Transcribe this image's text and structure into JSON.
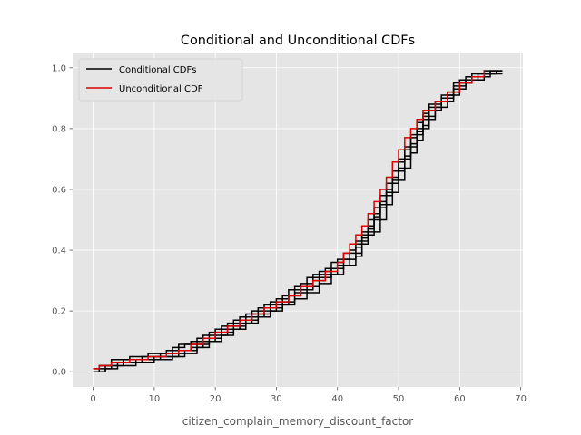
{
  "chart_data": {
    "type": "line",
    "title": "Conditional and Unconditional CDFs",
    "xlabel": "citizen_complain_memory_discount_factor",
    "ylabel": "",
    "xlim": [
      -3.35,
      70.35
    ],
    "ylim": [
      -0.05,
      1.05
    ],
    "xticks": [
      0,
      10,
      20,
      30,
      40,
      50,
      60,
      70
    ],
    "yticks": [
      0.0,
      0.2,
      0.4,
      0.6,
      0.8,
      1.0
    ],
    "xtick_labels": [
      "0",
      "10",
      "20",
      "30",
      "40",
      "50",
      "60",
      "70"
    ],
    "ytick_labels": [
      "0.0",
      "0.2",
      "0.4",
      "0.6",
      "0.8",
      "1.0"
    ],
    "grid": true,
    "legend_position": "top-left",
    "step": true,
    "series": [
      {
        "name": "Conditional CDFs",
        "color": "#000000",
        "lines": [
          [
            [
              0,
              0.0
            ],
            [
              1,
              0.01
            ],
            [
              3,
              0.02
            ],
            [
              5,
              0.03
            ],
            [
              8,
              0.04
            ],
            [
              11,
              0.05
            ],
            [
              14,
              0.07
            ],
            [
              16,
              0.08
            ],
            [
              18,
              0.1
            ],
            [
              20,
              0.12
            ],
            [
              22,
              0.14
            ],
            [
              24,
              0.16
            ],
            [
              26,
              0.18
            ],
            [
              28,
              0.2
            ],
            [
              30,
              0.22
            ],
            [
              32,
              0.25
            ],
            [
              34,
              0.27
            ],
            [
              36,
              0.3
            ],
            [
              38,
              0.32
            ],
            [
              40,
              0.35
            ],
            [
              42,
              0.39
            ],
            [
              44,
              0.44
            ],
            [
              45,
              0.48
            ],
            [
              46,
              0.52
            ],
            [
              47,
              0.56
            ],
            [
              48,
              0.6
            ],
            [
              49,
              0.64
            ],
            [
              50,
              0.69
            ],
            [
              51,
              0.73
            ],
            [
              52,
              0.77
            ],
            [
              53,
              0.8
            ],
            [
              54,
              0.84
            ],
            [
              55,
              0.87
            ],
            [
              57,
              0.9
            ],
            [
              59,
              0.94
            ],
            [
              61,
              0.97
            ],
            [
              64,
              0.99
            ],
            [
              67,
              0.99
            ]
          ],
          [
            [
              0,
              0.0
            ],
            [
              2,
              0.02
            ],
            [
              4,
              0.03
            ],
            [
              7,
              0.04
            ],
            [
              10,
              0.05
            ],
            [
              13,
              0.06
            ],
            [
              15,
              0.07
            ],
            [
              17,
              0.09
            ],
            [
              19,
              0.11
            ],
            [
              21,
              0.13
            ],
            [
              23,
              0.15
            ],
            [
              25,
              0.17
            ],
            [
              27,
              0.19
            ],
            [
              29,
              0.21
            ],
            [
              31,
              0.23
            ],
            [
              33,
              0.26
            ],
            [
              35,
              0.28
            ],
            [
              37,
              0.31
            ],
            [
              39,
              0.34
            ],
            [
              41,
              0.37
            ],
            [
              43,
              0.41
            ],
            [
              44,
              0.45
            ],
            [
              46,
              0.5
            ],
            [
              47,
              0.54
            ],
            [
              48,
              0.58
            ],
            [
              49,
              0.62
            ],
            [
              50,
              0.66
            ],
            [
              51,
              0.7
            ],
            [
              52,
              0.74
            ],
            [
              53,
              0.78
            ],
            [
              54,
              0.81
            ],
            [
              55,
              0.84
            ],
            [
              56,
              0.87
            ],
            [
              58,
              0.91
            ],
            [
              60,
              0.95
            ],
            [
              62,
              0.97
            ],
            [
              65,
              0.99
            ],
            [
              67,
              0.99
            ]
          ],
          [
            [
              0,
              0.01
            ],
            [
              1,
              0.02
            ],
            [
              3,
              0.04
            ],
            [
              6,
              0.05
            ],
            [
              9,
              0.06
            ],
            [
              12,
              0.07
            ],
            [
              14,
              0.09
            ],
            [
              16,
              0.1
            ],
            [
              18,
              0.12
            ],
            [
              20,
              0.14
            ],
            [
              22,
              0.16
            ],
            [
              24,
              0.18
            ],
            [
              26,
              0.2
            ],
            [
              28,
              0.22
            ],
            [
              30,
              0.24
            ],
            [
              32,
              0.27
            ],
            [
              34,
              0.29
            ],
            [
              36,
              0.32
            ],
            [
              38,
              0.34
            ],
            [
              40,
              0.37
            ],
            [
              42,
              0.4
            ],
            [
              43,
              0.43
            ],
            [
              45,
              0.47
            ],
            [
              46,
              0.51
            ],
            [
              47,
              0.55
            ],
            [
              48,
              0.59
            ],
            [
              49,
              0.63
            ],
            [
              50,
              0.67
            ],
            [
              51,
              0.71
            ],
            [
              52,
              0.75
            ],
            [
              53,
              0.79
            ],
            [
              54,
              0.83
            ],
            [
              55,
              0.86
            ],
            [
              56,
              0.89
            ],
            [
              58,
              0.92
            ],
            [
              60,
              0.96
            ],
            [
              63,
              0.98
            ],
            [
              66,
              0.99
            ]
          ],
          [
            [
              0,
              0.0
            ],
            [
              2,
              0.01
            ],
            [
              4,
              0.02
            ],
            [
              7,
              0.03
            ],
            [
              10,
              0.04
            ],
            [
              13,
              0.05
            ],
            [
              15,
              0.06
            ],
            [
              17,
              0.08
            ],
            [
              19,
              0.1
            ],
            [
              21,
              0.12
            ],
            [
              23,
              0.14
            ],
            [
              25,
              0.16
            ],
            [
              27,
              0.18
            ],
            [
              29,
              0.2
            ],
            [
              31,
              0.22
            ],
            [
              33,
              0.24
            ],
            [
              35,
              0.26
            ],
            [
              37,
              0.29
            ],
            [
              39,
              0.32
            ],
            [
              41,
              0.35
            ],
            [
              43,
              0.38
            ],
            [
              44,
              0.42
            ],
            [
              45,
              0.46
            ],
            [
              47,
              0.5
            ],
            [
              48,
              0.55
            ],
            [
              49,
              0.59
            ],
            [
              50,
              0.63
            ],
            [
              51,
              0.67
            ],
            [
              52,
              0.72
            ],
            [
              53,
              0.76
            ],
            [
              54,
              0.8
            ],
            [
              55,
              0.83
            ],
            [
              56,
              0.86
            ],
            [
              57,
              0.89
            ],
            [
              59,
              0.93
            ],
            [
              61,
              0.96
            ],
            [
              64,
              0.98
            ],
            [
              67,
              0.98
            ]
          ],
          [
            [
              0,
              0.0
            ],
            [
              1,
              0.02
            ],
            [
              3,
              0.03
            ],
            [
              5,
              0.04
            ],
            [
              8,
              0.05
            ],
            [
              11,
              0.06
            ],
            [
              13,
              0.08
            ],
            [
              15,
              0.09
            ],
            [
              17,
              0.11
            ],
            [
              19,
              0.13
            ],
            [
              21,
              0.15
            ],
            [
              23,
              0.17
            ],
            [
              25,
              0.19
            ],
            [
              27,
              0.21
            ],
            [
              29,
              0.23
            ],
            [
              31,
              0.25
            ],
            [
              33,
              0.28
            ],
            [
              35,
              0.31
            ],
            [
              37,
              0.33
            ],
            [
              39,
              0.36
            ],
            [
              41,
              0.39
            ],
            [
              42,
              0.42
            ],
            [
              44,
              0.46
            ],
            [
              45,
              0.5
            ],
            [
              46,
              0.54
            ],
            [
              47,
              0.58
            ],
            [
              48,
              0.62
            ],
            [
              49,
              0.66
            ],
            [
              50,
              0.7
            ],
            [
              51,
              0.74
            ],
            [
              52,
              0.78
            ],
            [
              53,
              0.82
            ],
            [
              54,
              0.85
            ],
            [
              55,
              0.88
            ],
            [
              57,
              0.91
            ],
            [
              59,
              0.95
            ],
            [
              62,
              0.98
            ],
            [
              65,
              0.99
            ]
          ]
        ]
      },
      {
        "name": "Unconditional CDF",
        "color": "#dd0000",
        "lines": [
          [
            [
              0,
              0.01
            ],
            [
              1,
              0.02
            ],
            [
              3,
              0.03
            ],
            [
              6,
              0.04
            ],
            [
              9,
              0.05
            ],
            [
              12,
              0.06
            ],
            [
              14,
              0.07
            ],
            [
              16,
              0.09
            ],
            [
              18,
              0.11
            ],
            [
              20,
              0.13
            ],
            [
              22,
              0.15
            ],
            [
              24,
              0.17
            ],
            [
              26,
              0.19
            ],
            [
              28,
              0.21
            ],
            [
              30,
              0.23
            ],
            [
              32,
              0.25
            ],
            [
              34,
              0.28
            ],
            [
              36,
              0.3
            ],
            [
              38,
              0.33
            ],
            [
              40,
              0.36
            ],
            [
              41,
              0.39
            ],
            [
              42,
              0.42
            ],
            [
              43,
              0.45
            ],
            [
              44,
              0.48
            ],
            [
              45,
              0.52
            ],
            [
              46,
              0.56
            ],
            [
              47,
              0.6
            ],
            [
              48,
              0.64
            ],
            [
              49,
              0.69
            ],
            [
              50,
              0.73
            ],
            [
              51,
              0.77
            ],
            [
              52,
              0.8
            ],
            [
              53,
              0.83
            ],
            [
              54,
              0.86
            ],
            [
              56,
              0.89
            ],
            [
              58,
              0.92
            ],
            [
              60,
              0.95
            ],
            [
              62,
              0.97
            ],
            [
              64,
              0.99
            ]
          ]
        ]
      }
    ]
  }
}
